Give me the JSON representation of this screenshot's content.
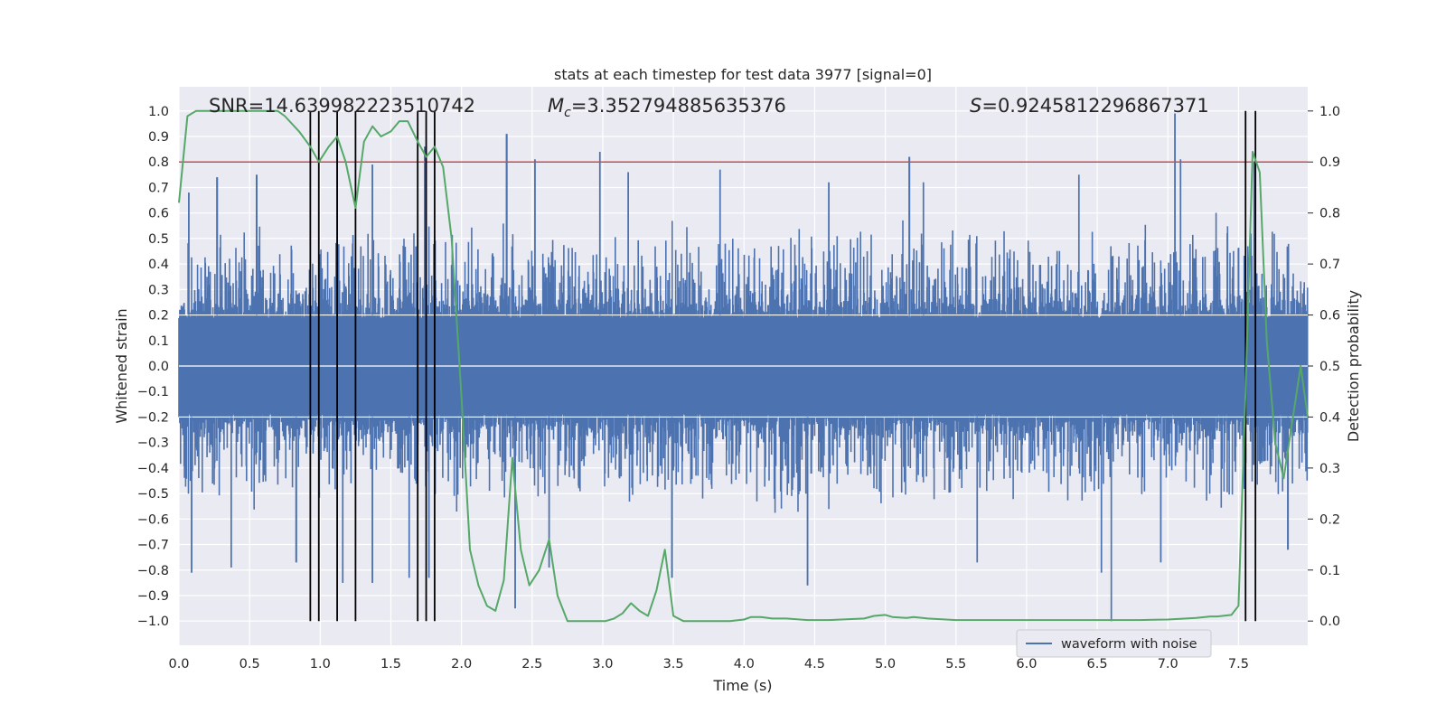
{
  "chart_data": {
    "type": "line",
    "title": "stats at each timestep for test data 3977 [signal=0]",
    "xlabel": "Time (s)",
    "ylabel": "Whitened strain",
    "y2label": "Detection probability",
    "xlim": [
      0.0,
      7.99
    ],
    "ylim": [
      -1.095,
      1.095
    ],
    "y2lim": [
      -0.0475,
      1.0475
    ],
    "grid": true,
    "x_ticks": [
      "0.0",
      "0.5",
      "1.0",
      "1.5",
      "2.0",
      "2.5",
      "3.0",
      "3.5",
      "4.0",
      "4.5",
      "5.0",
      "5.5",
      "6.0",
      "6.5",
      "7.0",
      "7.5"
    ],
    "y_ticks": [
      "1.0",
      "0.9",
      "0.8",
      "0.7",
      "0.6",
      "0.5",
      "0.4",
      "0.3",
      "0.2",
      "0.1",
      "0.0",
      "−0.1",
      "−0.2",
      "−0.3",
      "−0.4",
      "−0.5",
      "−0.6",
      "−0.7",
      "−0.8",
      "−0.9",
      "−1.0"
    ],
    "y2_ticks": [
      "1.0",
      "0.9",
      "0.8",
      "0.7",
      "0.6",
      "0.5",
      "0.4",
      "0.3",
      "0.2",
      "0.1",
      "0.0"
    ],
    "annotations": {
      "snr": "SNR=14.639982223510742",
      "mc_symbol": "M",
      "mc_subscript": "c",
      "mc_value": "=3.352794885635376",
      "s_symbol": "S",
      "s_value": "=0.9245812296867371"
    },
    "threshold": {
      "value": 0.8,
      "axis": "left",
      "color": "#c44e52"
    },
    "event_markers_s": [
      0.93,
      0.99,
      1.12,
      1.25,
      1.69,
      1.75,
      1.81,
      7.55,
      7.62
    ],
    "legend": {
      "label": "waveform with noise",
      "position": "lower-right"
    },
    "series": [
      {
        "name": "waveform with noise",
        "axis": "left",
        "color": "#4c72b0",
        "envelope_peaks_s": [
          [
            0.07,
            0.68
          ],
          [
            0.09,
            -0.81
          ],
          [
            0.27,
            0.74
          ],
          [
            0.37,
            -0.79
          ],
          [
            0.55,
            0.75
          ],
          [
            0.83,
            -0.77
          ],
          [
            1.12,
            0.91
          ],
          [
            1.16,
            -0.85
          ],
          [
            1.37,
            0.79
          ],
          [
            1.37,
            -0.85
          ],
          [
            1.63,
            -0.83
          ],
          [
            1.74,
            0.86
          ],
          [
            1.77,
            -0.83
          ],
          [
            2.32,
            0.91
          ],
          [
            2.38,
            -0.95
          ],
          [
            2.52,
            0.81
          ],
          [
            2.62,
            -0.79
          ],
          [
            2.98,
            0.84
          ],
          [
            3.18,
            0.76
          ],
          [
            3.49,
            -0.83
          ],
          [
            3.83,
            0.77
          ],
          [
            4.45,
            -0.86
          ],
          [
            4.6,
            0.72
          ],
          [
            5.17,
            0.82
          ],
          [
            5.27,
            0.72
          ],
          [
            5.65,
            -0.77
          ],
          [
            6.37,
            0.75
          ],
          [
            6.6,
            -1.0
          ],
          [
            6.53,
            -0.81
          ],
          [
            6.95,
            -0.77
          ],
          [
            7.05,
            0.99
          ],
          [
            7.09,
            0.81
          ],
          [
            7.61,
            0.8
          ],
          [
            7.85,
            -0.72
          ]
        ]
      },
      {
        "name": "detection probability",
        "axis": "right",
        "color": "#55a868",
        "x": [
          0.0,
          0.06,
          0.12,
          0.2,
          0.3,
          0.5,
          0.7,
          0.75,
          0.85,
          0.93,
          0.99,
          1.06,
          1.12,
          1.18,
          1.25,
          1.31,
          1.37,
          1.43,
          1.5,
          1.56,
          1.62,
          1.69,
          1.75,
          1.81,
          1.87,
          1.93,
          2.0,
          2.06,
          2.12,
          2.18,
          2.24,
          2.3,
          2.36,
          2.42,
          2.48,
          2.55,
          2.62,
          2.68,
          2.75,
          2.82,
          2.88,
          2.95,
          3.02,
          3.08,
          3.14,
          3.2,
          3.26,
          3.32,
          3.38,
          3.44,
          3.5,
          3.57,
          3.75,
          3.9,
          4.0,
          4.05,
          4.12,
          4.2,
          4.3,
          4.45,
          4.6,
          4.85,
          4.92,
          5.0,
          5.05,
          5.15,
          5.2,
          5.3,
          5.5,
          5.7,
          5.9,
          6.2,
          6.5,
          6.8,
          7.0,
          7.2,
          7.3,
          7.35,
          7.45,
          7.5,
          7.55,
          7.6,
          7.65,
          7.7,
          7.76,
          7.82,
          7.88,
          7.94,
          7.99
        ],
        "values": [
          0.82,
          0.99,
          1.0,
          1.0,
          1.0,
          1.0,
          1.0,
          0.99,
          0.96,
          0.93,
          0.9,
          0.93,
          0.95,
          0.9,
          0.81,
          0.94,
          0.97,
          0.95,
          0.96,
          0.98,
          0.98,
          0.94,
          0.91,
          0.93,
          0.89,
          0.75,
          0.44,
          0.14,
          0.07,
          0.03,
          0.02,
          0.08,
          0.32,
          0.14,
          0.07,
          0.1,
          0.16,
          0.05,
          0.0,
          0.0,
          0.0,
          0.0,
          0.0,
          0.005,
          0.015,
          0.035,
          0.02,
          0.01,
          0.06,
          0.14,
          0.01,
          0.0,
          0.0,
          0.0,
          0.003,
          0.008,
          0.008,
          0.005,
          0.005,
          0.002,
          0.002,
          0.005,
          0.01,
          0.012,
          0.008,
          0.006,
          0.008,
          0.005,
          0.002,
          0.002,
          0.002,
          0.002,
          0.002,
          0.002,
          0.003,
          0.006,
          0.009,
          0.009,
          0.012,
          0.03,
          0.45,
          0.92,
          0.88,
          0.55,
          0.35,
          0.28,
          0.39,
          0.5,
          0.4
        ]
      }
    ]
  }
}
